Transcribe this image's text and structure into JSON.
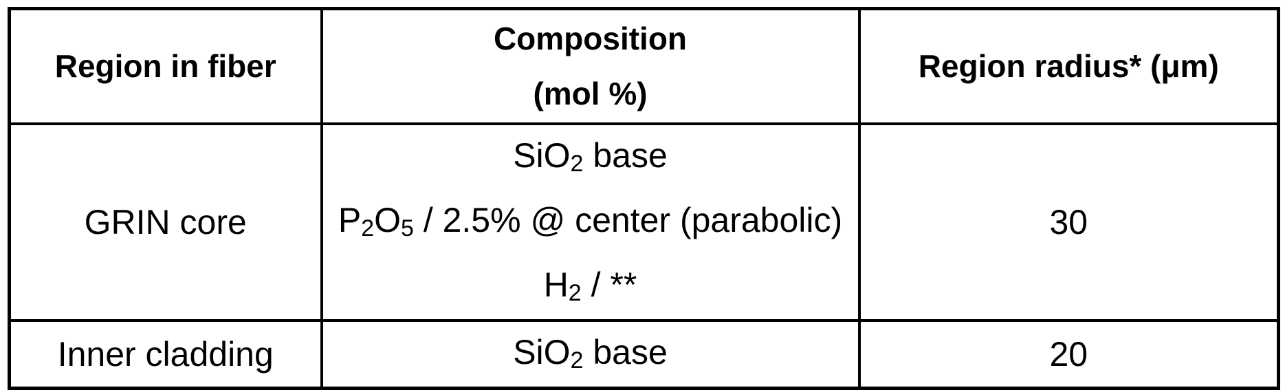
{
  "colors": {
    "background": "#ffffff",
    "text": "#000000",
    "border": "#000000"
  },
  "table": {
    "header": {
      "region": "Region in fiber",
      "composition_line1": "Composition",
      "composition_line2": "(mol %)",
      "radius": "Region radius* (μm)"
    },
    "rows": [
      {
        "region": "GRIN core",
        "radius": "30",
        "composition": [
          [
            {
              "text": "SiO"
            },
            {
              "text": "2",
              "sub": true
            },
            {
              "text": " base"
            }
          ],
          [
            {
              "text": "P"
            },
            {
              "text": "2",
              "sub": true
            },
            {
              "text": "O"
            },
            {
              "text": "5",
              "sub": true
            },
            {
              "text": " / 2.5% @ center (parabolic)"
            }
          ],
          [
            {
              "text": "H"
            },
            {
              "text": "2",
              "sub": true
            },
            {
              "text": " / **"
            }
          ]
        ]
      },
      {
        "region": "Inner cladding",
        "radius": "20",
        "composition": [
          [
            {
              "text": "SiO"
            },
            {
              "text": "2",
              "sub": true
            },
            {
              "text": " base"
            }
          ]
        ]
      }
    ]
  }
}
